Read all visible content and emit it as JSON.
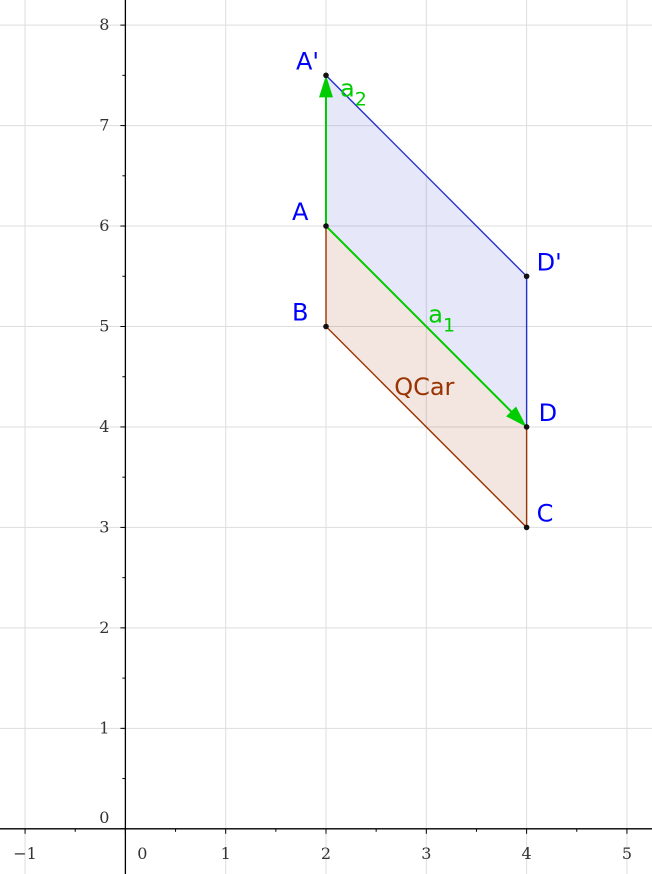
{
  "plot": {
    "x_ticks": [
      "-1",
      "0",
      "1",
      "2",
      "3",
      "4",
      "5"
    ],
    "y_ticks": [
      "0",
      "1",
      "2",
      "3",
      "4",
      "5",
      "6",
      "7",
      "8"
    ],
    "x_range": [
      -1.25,
      5.25
    ],
    "y_range": [
      -0.45,
      8.25
    ]
  },
  "points": [
    {
      "key": "A",
      "label": "A",
      "x": 2,
      "y": 6,
      "color": "#0000ff"
    },
    {
      "key": "B",
      "label": "B",
      "x": 2,
      "y": 5,
      "color": "#0000ff"
    },
    {
      "key": "C",
      "label": "C",
      "x": 4,
      "y": 3,
      "color": "#0000ff"
    },
    {
      "key": "D",
      "label": "D",
      "x": 4,
      "y": 4,
      "color": "#0000ff"
    },
    {
      "key": "Ap",
      "label": "A'",
      "x": 2,
      "y": 7.5,
      "color": "#0000ff"
    },
    {
      "key": "Dp",
      "label": "D'",
      "x": 4,
      "y": 5.5,
      "color": "#0000ff"
    }
  ],
  "polygons": {
    "qcar": {
      "label": "QCar",
      "vertices": [
        "A",
        "B",
        "C",
        "D"
      ],
      "stroke": "#993300",
      "fill": "#993300"
    },
    "translated": {
      "vertices": [
        "A",
        "Ap",
        "Dp",
        "D"
      ],
      "stroke": "#2233cc",
      "fill": "#3344cc"
    }
  },
  "vectors": [
    {
      "key": "a1",
      "base": "a",
      "sub": "1",
      "from": "A",
      "to": "D",
      "color": "#00cc00"
    },
    {
      "key": "a2",
      "base": "a",
      "sub": "2",
      "from": "A",
      "to": "Ap",
      "color": "#00cc00"
    }
  ],
  "colors": {
    "grid": "#dddddd",
    "axis": "#000000",
    "point": "#111111"
  }
}
